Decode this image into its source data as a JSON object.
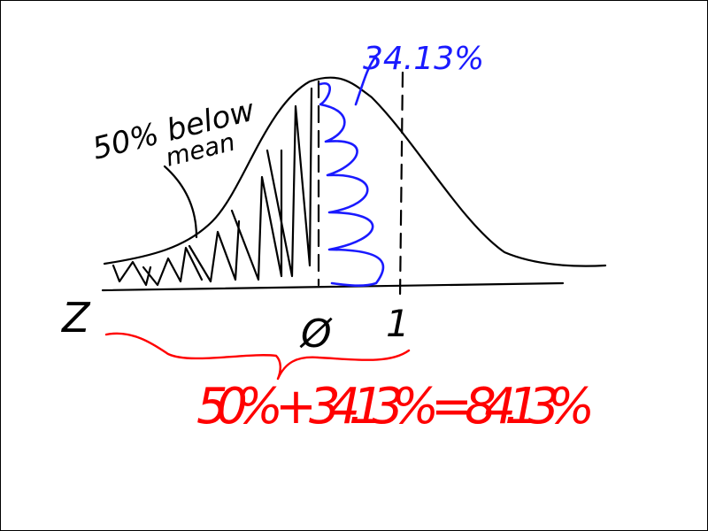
{
  "annotations": {
    "below_mean_line1": "50% below",
    "below_mean_line2": "mean",
    "right_area": "34.13%",
    "z_label": "Z",
    "tick_zero": "Ø",
    "tick_one": "1",
    "equation": "50% + 34.13% = 84.13%"
  },
  "colors": {
    "ink": "#000000",
    "blue": "#1a1aff",
    "red": "#ff0000",
    "background": "#ffffff"
  }
}
